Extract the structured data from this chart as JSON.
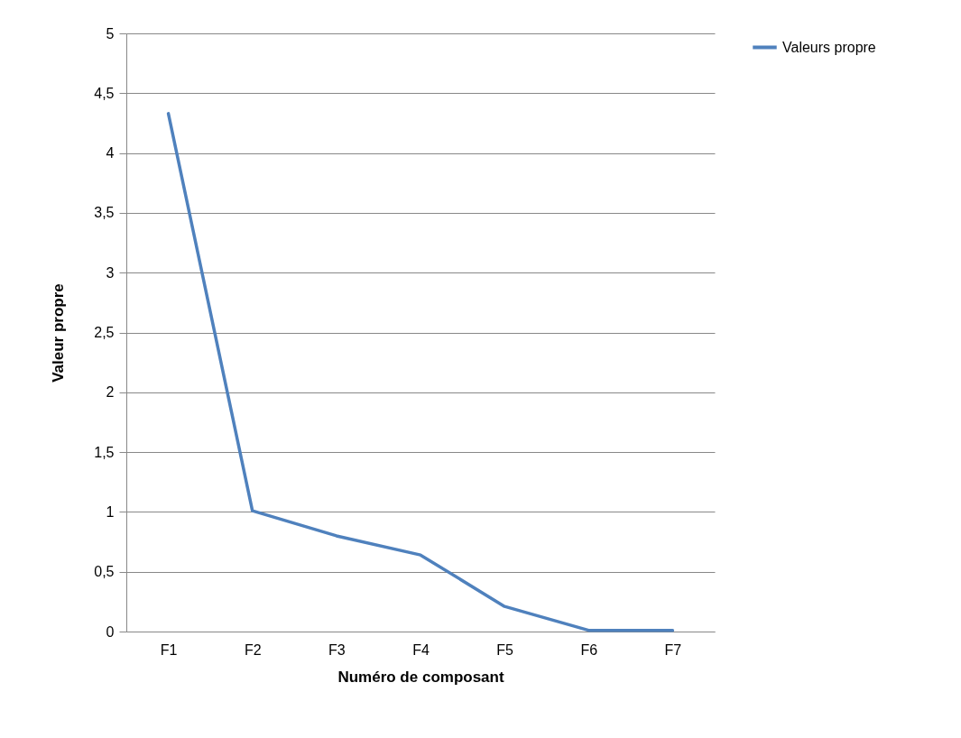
{
  "chart_data": {
    "type": "line",
    "xlabel": "Numéro de composant",
    "ylabel": "Valeur  propre",
    "categories": [
      "F1",
      "F2",
      "F3",
      "F4",
      "F5",
      "F6",
      "F7"
    ],
    "series": [
      {
        "name": "Valeurs propre",
        "color": "#4f81bd",
        "values": [
          4.33,
          1.01,
          0.8,
          0.64,
          0.21,
          0.01,
          0.01
        ]
      }
    ],
    "ylim": [
      0,
      5
    ],
    "yticks": [
      0,
      {
        "value": 0.5,
        "label": "0,5"
      },
      1,
      {
        "value": 1.5,
        "label": "1,5"
      },
      2,
      {
        "value": 2.5,
        "label": "2,5"
      },
      3,
      {
        "value": 3.5,
        "label": "3,5"
      },
      4,
      {
        "value": 4.5,
        "label": "4,5"
      },
      5
    ],
    "grid": "y",
    "legend": "right"
  }
}
